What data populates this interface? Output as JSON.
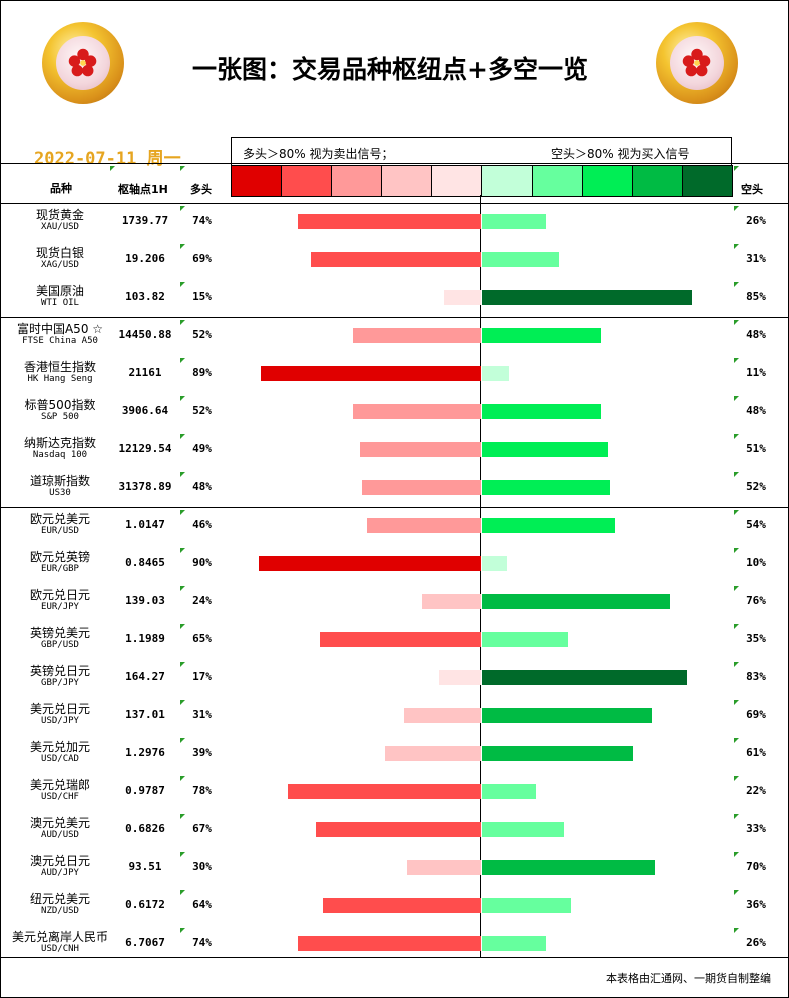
{
  "header": {
    "title": "一张图：交易品种枢纽点+多空一览",
    "date": "2022-07-11 周一",
    "long_note": "多头＞80% 视为卖出信号；",
    "short_note": "空头＞80% 视为买入信号"
  },
  "columns": {
    "name": "品种",
    "pivot": "枢轴点1H",
    "long": "多头",
    "short": "空头"
  },
  "colors": {
    "long_scale": [
      "#e00000",
      "#ff4d4d",
      "#ff9999",
      "#ffc4c4",
      "#ffe4e4"
    ],
    "short_scale": [
      "#c2ffd9",
      "#66ff9e",
      "#00ee55",
      "#00bb44",
      "#006a2a"
    ]
  },
  "footer": "本表格由汇通网、一期货自制整编",
  "chart_data": {
    "type": "bar",
    "orientation": "horizontal-diverging",
    "categories": [
      "现货黄金",
      "现货白银",
      "美国原油",
      "富时中国A50 ☆",
      "香港恒生指数",
      "标普500指数",
      "纳斯达克指数",
      "道琼斯指数",
      "欧元兑美元",
      "欧元兑英镑",
      "欧元兑日元",
      "英镑兑美元",
      "英镑兑日元",
      "美元兑日元",
      "美元兑加元",
      "美元兑瑞郎",
      "澳元兑美元",
      "澳元兑日元",
      "纽元兑美元",
      "美元兑离岸人民币"
    ],
    "rows": [
      {
        "cn": "现货黄金",
        "en": "XAU/USD",
        "pivot": "1739.77",
        "long": 74,
        "short": 26
      },
      {
        "cn": "现货白银",
        "en": "XAG/USD",
        "pivot": "19.206",
        "long": 69,
        "short": 31
      },
      {
        "cn": "美国原油",
        "en": "WTI OIL",
        "pivot": "103.82",
        "long": 15,
        "short": 85
      },
      {
        "cn": "富时中国A50 ☆",
        "en": "FTSE China A50",
        "pivot": "14450.88",
        "long": 52,
        "short": 48
      },
      {
        "cn": "香港恒生指数",
        "en": "HK Hang Seng",
        "pivot": "21161",
        "long": 89,
        "short": 11
      },
      {
        "cn": "标普500指数",
        "en": "S&P 500",
        "pivot": "3906.64",
        "long": 52,
        "short": 48
      },
      {
        "cn": "纳斯达克指数",
        "en": "Nasdaq 100",
        "pivot": "12129.54",
        "long": 49,
        "short": 51
      },
      {
        "cn": "道琼斯指数",
        "en": "US30",
        "pivot": "31378.89",
        "long": 48,
        "short": 52
      },
      {
        "cn": "欧元兑美元",
        "en": "EUR/USD",
        "pivot": "1.0147",
        "long": 46,
        "short": 54
      },
      {
        "cn": "欧元兑英镑",
        "en": "EUR/GBP",
        "pivot": "0.8465",
        "long": 90,
        "short": 10
      },
      {
        "cn": "欧元兑日元",
        "en": "EUR/JPY",
        "pivot": "139.03",
        "long": 24,
        "short": 76
      },
      {
        "cn": "英镑兑美元",
        "en": "GBP/USD",
        "pivot": "1.1989",
        "long": 65,
        "short": 35
      },
      {
        "cn": "英镑兑日元",
        "en": "GBP/JPY",
        "pivot": "164.27",
        "long": 17,
        "short": 83
      },
      {
        "cn": "美元兑日元",
        "en": "USD/JPY",
        "pivot": "137.01",
        "long": 31,
        "short": 69
      },
      {
        "cn": "美元兑加元",
        "en": "USD/CAD",
        "pivot": "1.2976",
        "long": 39,
        "short": 61
      },
      {
        "cn": "美元兑瑞郎",
        "en": "USD/CHF",
        "pivot": "0.9787",
        "long": 78,
        "short": 22
      },
      {
        "cn": "澳元兑美元",
        "en": "AUD/USD",
        "pivot": "0.6826",
        "long": 67,
        "short": 33
      },
      {
        "cn": "澳元兑日元",
        "en": "AUD/JPY",
        "pivot": "93.51",
        "long": 30,
        "short": 70
      },
      {
        "cn": "纽元兑美元",
        "en": "NZD/USD",
        "pivot": "0.6172",
        "long": 64,
        "short": 36
      },
      {
        "cn": "美元兑离岸人民币",
        "en": "USD/CNH",
        "pivot": "6.7067",
        "long": 74,
        "short": 26
      }
    ],
    "xlim": [
      0,
      100
    ]
  }
}
